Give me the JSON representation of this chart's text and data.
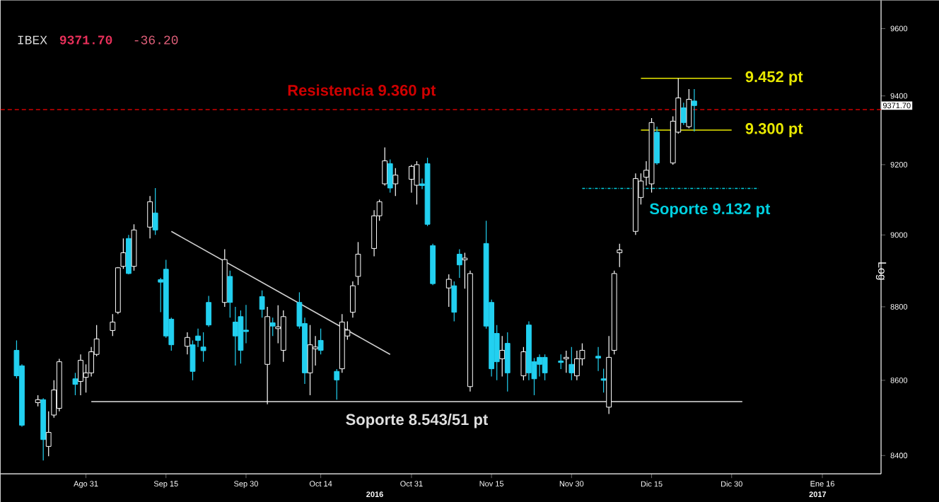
{
  "chart_data": {
    "type": "candlestick",
    "title": "IBEX",
    "ylabel": "Log",
    "log": true,
    "xlim": [
      "2016-08-15",
      "2017-01-27"
    ],
    "ylim": [
      8352,
      9685
    ],
    "xticks": [
      {
        "value": "2016-08-31",
        "label": "Ago 31"
      },
      {
        "value": "2016-09-15",
        "label": "Sep 15"
      },
      {
        "value": "2016-09-30",
        "label": "Sep 30"
      },
      {
        "value": "2016-10-14",
        "label": "Oct 14"
      },
      {
        "value": "2016-10-31",
        "label": "Oct 31"
      },
      {
        "value": "2016-11-15",
        "label": "Nov 15"
      },
      {
        "value": "2016-11-30",
        "label": "Nov 30"
      },
      {
        "value": "2016-12-15",
        "label": "Dic 15"
      },
      {
        "value": "2016-12-30",
        "label": "Dic 30"
      },
      {
        "value": "2017-01-16",
        "label": "Ene 16"
      }
    ],
    "yticks": [
      8400,
      8600,
      8800,
      9000,
      9200,
      9400,
      9600
    ],
    "x": [
      "2016-08-18",
      "2016-08-19",
      "2016-08-22",
      "2016-08-23",
      "2016-08-24",
      "2016-08-25",
      "2016-08-26",
      "2016-08-29",
      "2016-08-30",
      "2016-08-31",
      "2016-09-01",
      "2016-09-02",
      "2016-09-05",
      "2016-09-06",
      "2016-09-07",
      "2016-09-08",
      "2016-09-09",
      "2016-09-12",
      "2016-09-13",
      "2016-09-14",
      "2016-09-15",
      "2016-09-16",
      "2016-09-19",
      "2016-09-20",
      "2016-09-21",
      "2016-09-22",
      "2016-09-23",
      "2016-09-26",
      "2016-09-27",
      "2016-09-28",
      "2016-09-29",
      "2016-09-30",
      "2016-10-03",
      "2016-10-04",
      "2016-10-05",
      "2016-10-06",
      "2016-10-07",
      "2016-10-10",
      "2016-10-11",
      "2016-10-12",
      "2016-10-13",
      "2016-10-14",
      "2016-10-17",
      "2016-10-18",
      "2016-10-19",
      "2016-10-20",
      "2016-10-21",
      "2016-10-24",
      "2016-10-25",
      "2016-10-26",
      "2016-10-27",
      "2016-10-28",
      "2016-10-31",
      "2016-11-01",
      "2016-11-02",
      "2016-11-03",
      "2016-11-04",
      "2016-11-07",
      "2016-11-08",
      "2016-11-09",
      "2016-11-10",
      "2016-11-11",
      "2016-11-14",
      "2016-11-15",
      "2016-11-16",
      "2016-11-17",
      "2016-11-18",
      "2016-11-21",
      "2016-11-22",
      "2016-11-23",
      "2016-11-24",
      "2016-11-25",
      "2016-11-28",
      "2016-11-29",
      "2016-11-30",
      "2016-12-01",
      "2016-12-02",
      "2016-12-05",
      "2016-12-06",
      "2016-12-07",
      "2016-12-08",
      "2016-12-09",
      "2016-12-12",
      "2016-12-13",
      "2016-12-14",
      "2016-12-15",
      "2016-12-16",
      "2016-12-19",
      "2016-12-20",
      "2016-12-21",
      "2016-12-22",
      "2016-12-23"
    ],
    "ohlc": [
      [
        8681,
        8708,
        8605,
        8612
      ],
      [
        8639,
        8643,
        8476,
        8480
      ],
      [
        8540,
        8560,
        8530,
        8548
      ],
      [
        8548,
        8552,
        8387,
        8442
      ],
      [
        8424,
        8517,
        8398,
        8461
      ],
      [
        8507,
        8600,
        8500,
        8574
      ],
      [
        8525,
        8658,
        8517,
        8650
      ],
      [
        8604,
        8620,
        8560,
        8589
      ],
      [
        8597,
        8670,
        8560,
        8654
      ],
      [
        8608,
        8643,
        8567,
        8620
      ],
      [
        8620,
        8690,
        8610,
        8677
      ],
      [
        8670,
        8750,
        8665,
        8712
      ],
      [
        8735,
        8780,
        8720,
        8758
      ],
      [
        8785,
        8910,
        8780,
        8908
      ],
      [
        8912,
        8990,
        8905,
        8950
      ],
      [
        8990,
        9000,
        8890,
        8892
      ],
      [
        8912,
        9030,
        8900,
        9014
      ],
      [
        9022,
        9110,
        8990,
        9094
      ],
      [
        9062,
        9133,
        9000,
        9014
      ],
      [
        8875,
        8880,
        8785,
        8868
      ],
      [
        8904,
        8930,
        8715,
        8720
      ],
      [
        8766,
        8770,
        8680,
        8696
      ],
      [
        8692,
        8730,
        8670,
        8716
      ],
      [
        8696,
        8708,
        8600,
        8624
      ],
      [
        8720,
        8740,
        8690,
        8708
      ],
      [
        8690,
        8730,
        8650,
        8680
      ],
      [
        8812,
        8830,
        8745,
        8750
      ],
      [
        8812,
        8960,
        8800,
        8931
      ],
      [
        8884,
        8900,
        8770,
        8812
      ],
      [
        8758,
        8800,
        8640,
        8720
      ],
      [
        8773,
        8790,
        8645,
        8681
      ],
      [
        8736,
        8805,
        8700,
        8732
      ],
      [
        8828,
        8845,
        8770,
        8793
      ],
      [
        8643,
        8800,
        8536,
        8773
      ],
      [
        8756,
        8770,
        8720,
        8747
      ],
      [
        8740,
        8804,
        8700,
        8745
      ],
      [
        8681,
        8790,
        8650,
        8773
      ],
      [
        8812,
        8840,
        8740,
        8747
      ],
      [
        8754,
        8770,
        8590,
        8620
      ],
      [
        8620,
        8750,
        8560,
        8696
      ],
      [
        8685,
        8720,
        8640,
        8690
      ],
      [
        8708,
        8740,
        8670,
        8681
      ],
      [
        8624,
        8630,
        8548,
        8601
      ],
      [
        8631,
        8780,
        8620,
        8758
      ],
      [
        8720,
        8760,
        8710,
        8736
      ],
      [
        8785,
        8870,
        8770,
        8858
      ],
      [
        8884,
        8980,
        8860,
        8946
      ],
      [
        8962,
        9070,
        8940,
        9054
      ],
      [
        9054,
        9100,
        9040,
        9094
      ],
      [
        9145,
        9250,
        9140,
        9211
      ],
      [
        9203,
        9215,
        9120,
        9133
      ],
      [
        9145,
        9190,
        9110,
        9170
      ],
      [
        9158,
        9200,
        9120,
        9195
      ],
      [
        9141,
        9210,
        9086,
        9200
      ],
      [
        9145,
        9160,
        9130,
        9140
      ],
      [
        9203,
        9220,
        9025,
        9030
      ],
      [
        8970,
        8975,
        8860,
        8864
      ],
      [
        8852,
        8890,
        8800,
        8876
      ],
      [
        8858,
        8870,
        8760,
        8785
      ],
      [
        8946,
        8960,
        8880,
        8916
      ],
      [
        8930,
        8950,
        8850,
        8935
      ],
      [
        8583,
        8900,
        8570,
        8892
      ],
      [
        8976,
        9040,
        8740,
        8747
      ],
      [
        8812,
        8820,
        8610,
        8631
      ],
      [
        8727,
        8750,
        8600,
        8650
      ],
      [
        8658,
        8720,
        8610,
        8681
      ],
      [
        8700,
        8730,
        8570,
        8620
      ],
      [
        8612,
        8690,
        8600,
        8677
      ],
      [
        8750,
        8760,
        8600,
        8620
      ],
      [
        8650,
        8660,
        8560,
        8604
      ],
      [
        8662,
        8670,
        8610,
        8643
      ],
      [
        8662,
        8670,
        8600,
        8620
      ],
      [
        8652,
        8670,
        8630,
        8648
      ],
      [
        8658,
        8680,
        8620,
        8662
      ],
      [
        8643,
        8690,
        8600,
        8620
      ],
      [
        8612,
        8680,
        8600,
        8658
      ],
      [
        8658,
        8700,
        8640,
        8681
      ],
      [
        8665,
        8690,
        8625,
        8660
      ],
      [
        8604,
        8631,
        8567,
        8600
      ],
      [
        8528,
        8720,
        8510,
        8662
      ],
      [
        8681,
        8900,
        8670,
        8892
      ],
      [
        8950,
        8975,
        8910,
        8958
      ],
      [
        9010,
        9175,
        9000,
        9160
      ],
      [
        9106,
        9175,
        9086,
        9153
      ],
      [
        9164,
        9210,
        9140,
        9184
      ],
      [
        9145,
        9335,
        9120,
        9322
      ],
      [
        9294,
        9310,
        9200,
        9205
      ],
      [
        9205,
        9340,
        9200,
        9326
      ],
      [
        9294,
        9452,
        9290,
        9394
      ],
      [
        9365,
        9380,
        9315,
        9322
      ],
      [
        9310,
        9420,
        9305,
        9390
      ],
      [
        9385,
        9420,
        9296,
        9371.7
      ]
    ],
    "series": [
      {
        "type": "line",
        "x": [
          "2016-09-16",
          "2016-10-27"
        ],
        "values": [
          9010,
          8670
        ],
        "color": "#d0d0d0"
      },
      {
        "type": "line",
        "name": "Soporte 8.543/51 pt",
        "x": [
          "2016-09-01",
          "2017-01-01"
        ],
        "values": [
          8543,
          8543
        ],
        "color": "#e0e0e0"
      },
      {
        "type": "line",
        "name": "9.452 pt",
        "x": [
          "2016-12-13",
          "2016-12-30"
        ],
        "values": [
          9452,
          9452
        ],
        "color": "#e8e800"
      },
      {
        "type": "line",
        "name": "9.300 pt",
        "x": [
          "2016-12-13",
          "2016-12-30"
        ],
        "values": [
          9300,
          9300
        ],
        "color": "#e8e800"
      },
      {
        "type": "line",
        "name": "Soporte 9.132 pt",
        "x": [
          "2016-12-02",
          "2017-01-04"
        ],
        "values": [
          9132,
          9132
        ],
        "color": "#00d0e0",
        "line_style": "dotted"
      }
    ],
    "ref_lines": [
      {
        "axis": "y",
        "value": 9360,
        "label": "Resistencia 9.360 pt",
        "color": "#d00000",
        "line_style": "dashed"
      }
    ],
    "annotations": [
      "9371.70",
      "-36.20",
      "9371.70",
      "2016",
      "2017"
    ]
  }
}
